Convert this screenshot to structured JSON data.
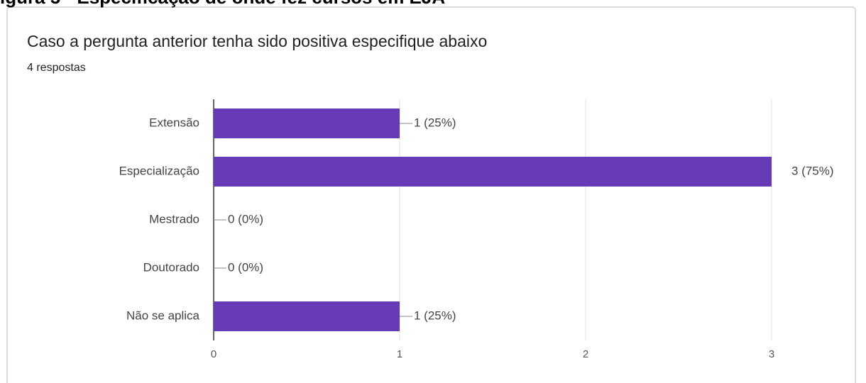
{
  "chart_data": {
    "type": "bar",
    "orientation": "horizontal",
    "caption": "igura 5 - Especificação de onde fez cursos em EJA",
    "title": "Caso a pergunta anterior tenha sido positiva especifique abaixo",
    "subtitle": "4 respostas",
    "categories": [
      "Extensão",
      "Especialização",
      "Mestrado",
      "Doutorado",
      "Não se aplica"
    ],
    "values": [
      1,
      3,
      0,
      0,
      1
    ],
    "value_labels": [
      "1 (25%)",
      "3 (75%)",
      "0 (0%)",
      "0 (0%)",
      "1 (25%)"
    ],
    "color": "#673ab7",
    "xlim": [
      0,
      3
    ],
    "xticks": [
      0,
      1,
      2,
      3
    ],
    "grid": true
  }
}
